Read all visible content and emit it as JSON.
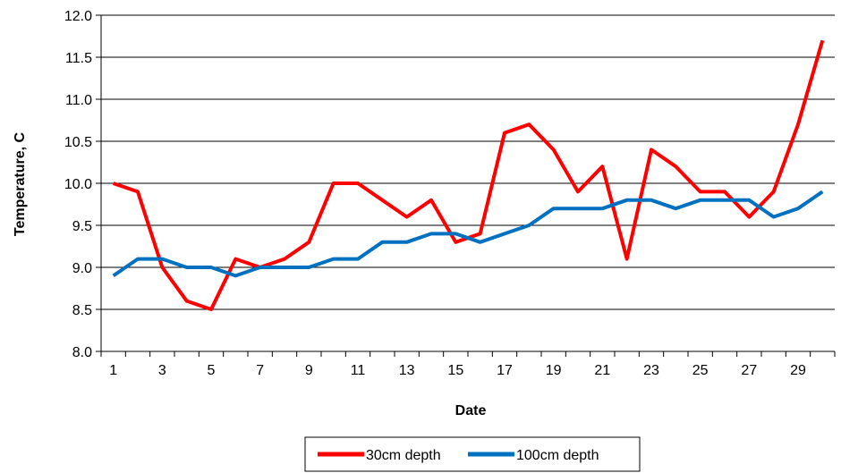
{
  "chart_data": {
    "type": "line",
    "title": "",
    "xlabel": "Date",
    "ylabel": "Temperature, C",
    "x": [
      1,
      2,
      3,
      4,
      5,
      6,
      7,
      8,
      9,
      10,
      11,
      12,
      13,
      14,
      15,
      16,
      17,
      18,
      19,
      20,
      21,
      22,
      23,
      24,
      25,
      26,
      27,
      28,
      29,
      30
    ],
    "x_tick_labels": [
      "1",
      "3",
      "5",
      "7",
      "9",
      "11",
      "13",
      "15",
      "17",
      "19",
      "21",
      "23",
      "25",
      "27",
      "29"
    ],
    "ylim": [
      8.0,
      12.0
    ],
    "y_tick_labels": [
      "8.0",
      "8.5",
      "9.0",
      "9.5",
      "10.0",
      "10.5",
      "11.0",
      "11.5",
      "12.0"
    ],
    "grid": "horizontal major",
    "legend_position": "bottom",
    "series": [
      {
        "name": "30cm depth",
        "color": "#ff0000",
        "values": [
          10.0,
          9.9,
          9.0,
          8.6,
          8.5,
          9.1,
          9.0,
          9.1,
          9.3,
          10.0,
          10.0,
          9.8,
          9.6,
          9.8,
          9.3,
          9.4,
          10.6,
          10.7,
          10.4,
          9.9,
          10.2,
          9.1,
          10.4,
          10.2,
          9.9,
          9.9,
          9.6,
          9.9,
          10.7,
          11.7
        ]
      },
      {
        "name": "100cm depth",
        "color": "#0070c0",
        "values": [
          8.9,
          9.1,
          9.1,
          9.0,
          9.0,
          8.9,
          9.0,
          9.0,
          9.0,
          9.1,
          9.1,
          9.3,
          9.3,
          9.4,
          9.4,
          9.3,
          9.4,
          9.5,
          9.7,
          9.7,
          9.7,
          9.8,
          9.8,
          9.7,
          9.8,
          9.8,
          9.8,
          9.6,
          9.7,
          9.9
        ]
      }
    ]
  }
}
